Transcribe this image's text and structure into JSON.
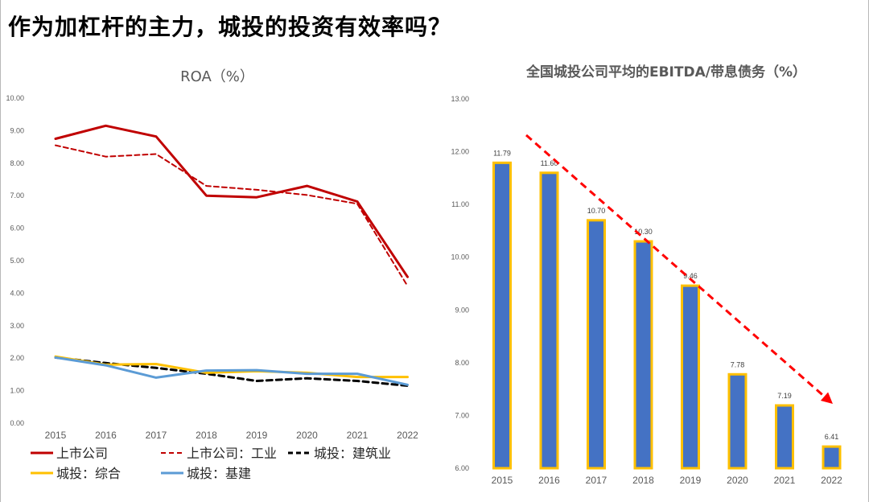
{
  "page": {
    "title": "作为加杠杆的主力，城投的投资有效率吗？"
  },
  "chart_data": [
    {
      "type": "line",
      "title": "ROA（%）",
      "x": [
        "2015",
        "2016",
        "2017",
        "2018",
        "2019",
        "2020",
        "2021",
        "2022"
      ],
      "ylim": [
        0,
        10
      ],
      "yticks": [
        "0.00",
        "1.00",
        "2.00",
        "3.00",
        "4.00",
        "5.00",
        "6.00",
        "7.00",
        "8.00",
        "9.00",
        "10.00"
      ],
      "grid": false,
      "legend_position": "bottom",
      "series": [
        {
          "name": "上市公司",
          "color": "#C00000",
          "style": "solid",
          "width": 3,
          "values": [
            8.75,
            9.15,
            8.82,
            7.0,
            6.95,
            7.3,
            6.82,
            4.5
          ]
        },
        {
          "name": "上市公司：工业",
          "color": "#C00000",
          "style": "dashed",
          "width": 2,
          "values": [
            8.55,
            8.2,
            8.28,
            7.3,
            7.18,
            7.02,
            6.75,
            4.22
          ]
        },
        {
          "name": "城投：建筑业",
          "color": "#000000",
          "style": "dashed",
          "width": 3,
          "values": [
            2.02,
            1.85,
            1.7,
            1.52,
            1.3,
            1.38,
            1.3,
            1.15
          ]
        },
        {
          "name": "城投：综合",
          "color": "#FFC000",
          "style": "solid",
          "width": 3,
          "values": [
            2.05,
            1.8,
            1.82,
            1.55,
            1.6,
            1.55,
            1.42,
            1.42
          ]
        },
        {
          "name": "城投：基建",
          "color": "#5B9BD5",
          "style": "solid",
          "width": 3,
          "values": [
            2.02,
            1.78,
            1.4,
            1.62,
            1.63,
            1.52,
            1.52,
            1.18
          ]
        }
      ]
    },
    {
      "type": "bar",
      "title": "全国城投公司平均的EBITDA/带息债务（%）",
      "categories": [
        "2015",
        "2016",
        "2017",
        "2018",
        "2019",
        "2020",
        "2021",
        "2022"
      ],
      "values": [
        11.79,
        11.6,
        10.7,
        10.3,
        9.46,
        7.78,
        7.19,
        6.41
      ],
      "value_labels": [
        "11.79",
        "11.60",
        "10.70",
        "10.30",
        "9.46",
        "7.78",
        "7.19",
        "6.41"
      ],
      "ylim": [
        6,
        13
      ],
      "yticks": [
        "6.00",
        "7.00",
        "8.00",
        "9.00",
        "10.00",
        "11.00",
        "12.00",
        "13.00"
      ],
      "grid": false,
      "colors": {
        "fill": "#4472C4",
        "border": "#FFC000",
        "trend_arrow": "#FF0000"
      },
      "annotation": {
        "type": "trend-arrow",
        "direction": "down",
        "style": "dashed"
      }
    }
  ]
}
